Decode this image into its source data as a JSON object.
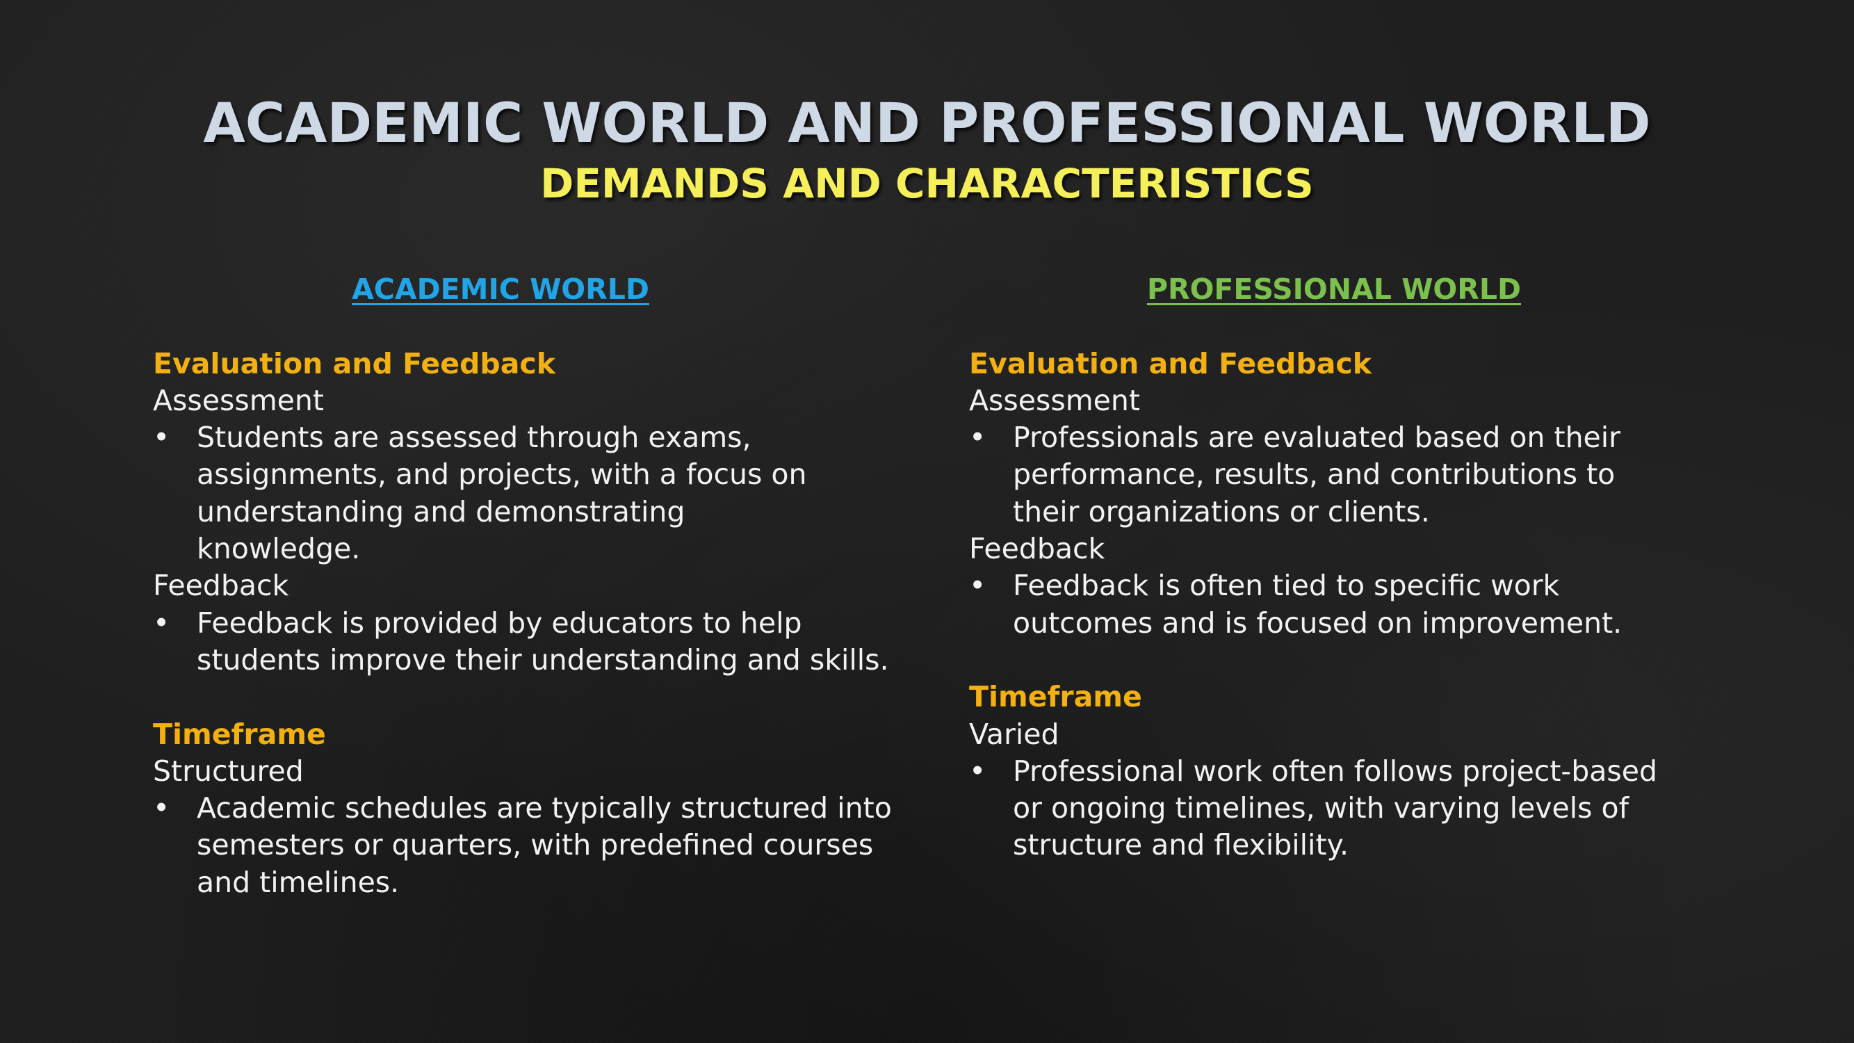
{
  "slide": {
    "title": "ACADEMIC WORLD AND PROFESSIONAL WORLD",
    "subtitle": "DEMANDS AND CHARACTERISTICS"
  },
  "academic": {
    "heading": "ACADEMIC WORLD",
    "section1_title": "Evaluation and Feedback",
    "assessment_label": "Assessment",
    "assessment_text": "Students are assessed through exams, assignments, and projects, with a focus on understanding and demonstrating knowledge.",
    "feedback_label": "Feedback",
    "feedback_text": "Feedback is provided by educators to help students improve their understanding and skills.",
    "section2_title": "Timeframe",
    "timeframe_label": "Structured",
    "timeframe_text": "Academic schedules are typically structured into semesters or quarters, with predefined courses and timelines."
  },
  "professional": {
    "heading": "PROFESSIONAL WORLD",
    "section1_title": "Evaluation and Feedback",
    "assessment_label": "Assessment",
    "assessment_text": "Professionals are evaluated based on their performance, results, and contributions to their organizations or clients.",
    "feedback_label": "Feedback",
    "feedback_text": "Feedback is often tied to specific work outcomes and is focused on improvement.",
    "section2_title": "Timeframe",
    "timeframe_label": "Varied",
    "timeframe_text": "Professional work often follows project-based or ongoing timelines, with varying levels of structure and flexibility."
  },
  "bullet_glyph": "•",
  "colors": {
    "title": "#cfd9e6",
    "subtitle": "#f5ef5a",
    "academic_heading": "#22a5e6",
    "professional_heading": "#7cc04d",
    "section_title": "#f3b012",
    "body_text": "#f2f2f2",
    "background": "#1d1d1d"
  }
}
